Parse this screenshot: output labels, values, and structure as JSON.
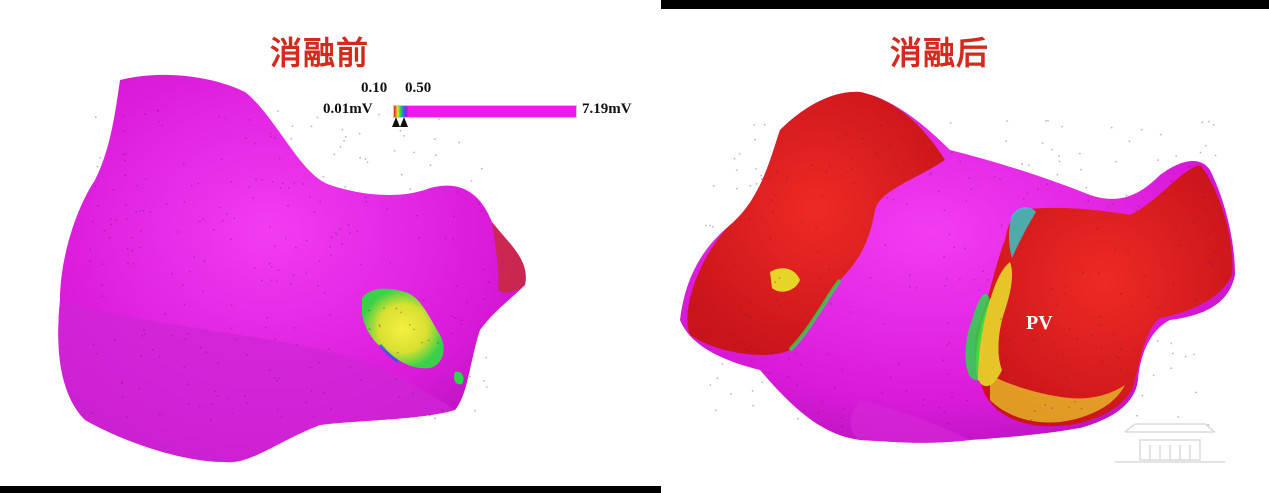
{
  "panels": {
    "before": {
      "title": "消融前"
    },
    "after": {
      "title": "消融后"
    }
  },
  "legend": {
    "min_label": "0.01mV",
    "tick1_label": "0.10",
    "tick2_label": "0.50",
    "max_label": "7.19mV"
  },
  "annotations": {
    "pv_label": "PV"
  },
  "colors": {
    "title_red": "#d42a1e",
    "map_magenta": "#e61ae6",
    "map_red": "#e01e1e",
    "map_yellow": "#e8e82a",
    "map_green": "#2ad84a",
    "map_blue": "#2a7ae8"
  }
}
